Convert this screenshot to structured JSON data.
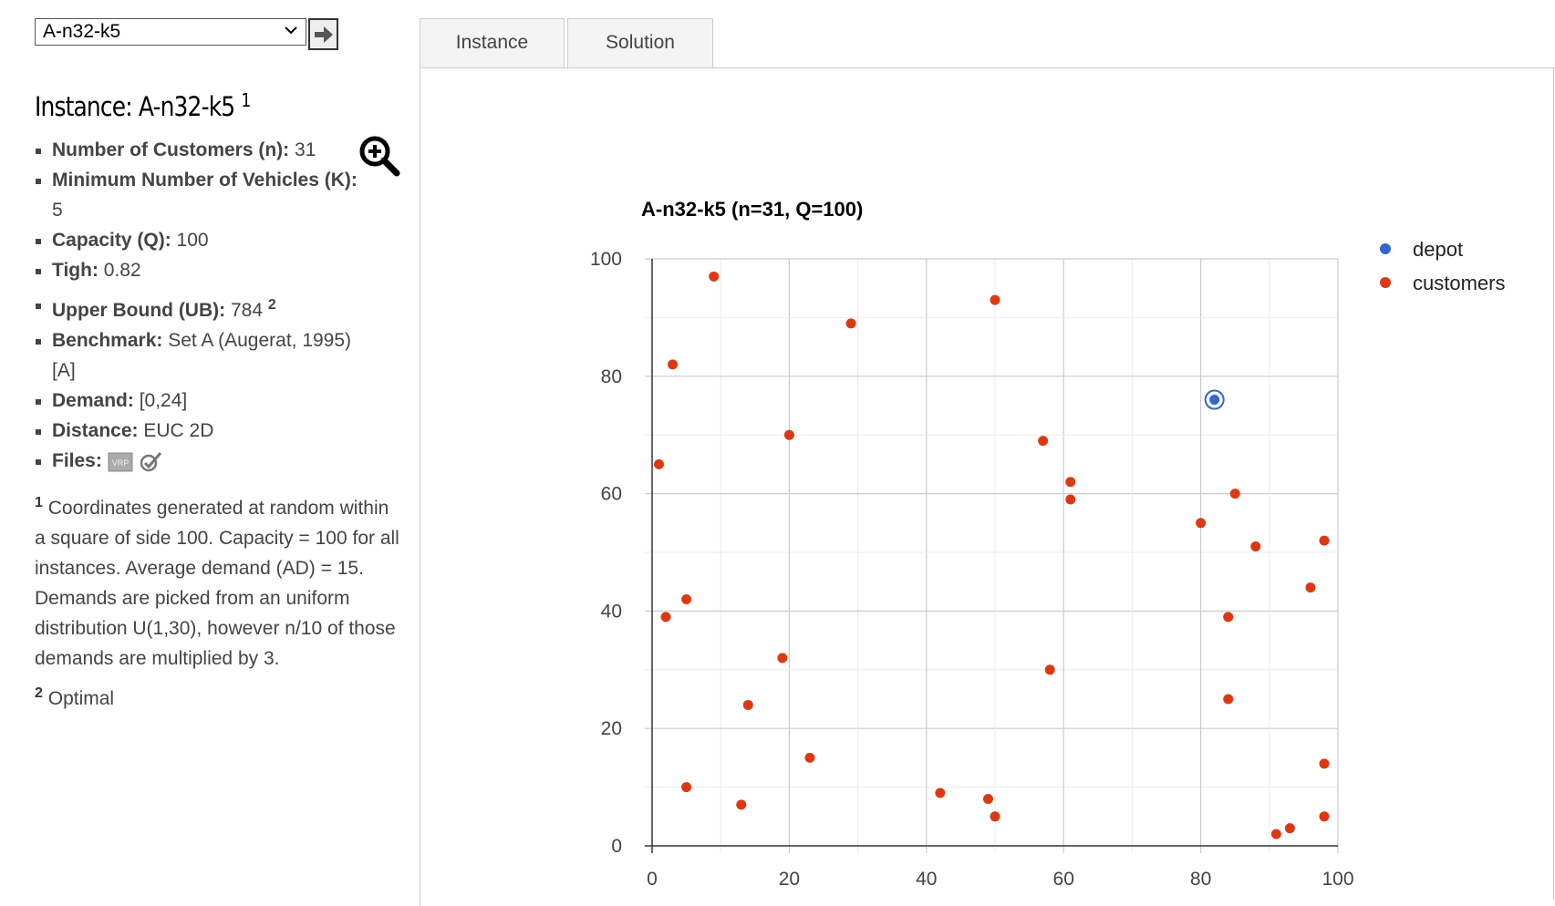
{
  "selector": {
    "value": "A-n32-k5"
  },
  "tabs": [
    {
      "label": "Instance"
    },
    {
      "label": "Solution"
    }
  ],
  "instance": {
    "title_prefix": "Instance: ",
    "name": "A-n32-k5",
    "title_note": "1",
    "properties": [
      {
        "label": "Number of Customers (n):",
        "value": " 31"
      },
      {
        "label": "Minimum Number of Vehicles (K):",
        "value": " 5"
      },
      {
        "label": "Capacity (Q):",
        "value": " 100"
      },
      {
        "label": "Tigh:",
        "value": " 0.82"
      },
      {
        "label": "Upper Bound (UB):",
        "value": " 784 ",
        "note": "2"
      },
      {
        "label": "Benchmark:",
        "value": " Set A (Augerat, 1995) [A]"
      },
      {
        "label": "Demand:",
        "value": " [0,24]"
      },
      {
        "label": "Distance:",
        "value": " EUC 2D"
      },
      {
        "label": "Files:",
        "value": ""
      }
    ],
    "files_icons": [
      "vrp-file-icon",
      "solution-file-icon"
    ],
    "notes": [
      {
        "num": "1",
        "text": " Coordinates generated at random within a square of side 100. Capacity = 100 for all instances. Average demand (AD) = 15. Demands are picked from an uniform distribution U(1,30), however n/10 of those demands are multiplied by 3."
      },
      {
        "num": "2",
        "text": " Optimal"
      }
    ]
  },
  "colors": {
    "depot": "#3366cc",
    "customers": "#dc3912",
    "grid": "#dddddd",
    "axis": "#333333"
  },
  "chart_data": {
    "type": "scatter",
    "title": "A-n32-k5 (n=31, Q=100)",
    "xlabel": "",
    "ylabel": "",
    "xlim": [
      0,
      100
    ],
    "ylim": [
      0,
      100
    ],
    "x_ticks": [
      "0",
      "20",
      "40",
      "60",
      "80",
      "100"
    ],
    "y_ticks": [
      "0",
      "20",
      "40",
      "60",
      "80",
      "100"
    ],
    "grid": true,
    "legend_position": "right",
    "series": [
      {
        "name": "depot",
        "points": [
          [
            82,
            76
          ]
        ]
      },
      {
        "name": "customers",
        "points": [
          [
            1,
            65
          ],
          [
            2,
            39
          ],
          [
            3,
            82
          ],
          [
            5,
            42
          ],
          [
            5,
            10
          ],
          [
            9,
            97
          ],
          [
            13,
            7
          ],
          [
            14,
            24
          ],
          [
            19,
            32
          ],
          [
            20,
            70
          ],
          [
            23,
            15
          ],
          [
            29,
            89
          ],
          [
            42,
            9
          ],
          [
            49,
            8
          ],
          [
            50,
            93
          ],
          [
            50,
            5
          ],
          [
            57,
            69
          ],
          [
            58,
            30
          ],
          [
            61,
            62
          ],
          [
            61,
            59
          ],
          [
            80,
            55
          ],
          [
            84,
            39
          ],
          [
            84,
            25
          ],
          [
            85,
            60
          ],
          [
            88,
            51
          ],
          [
            91,
            2
          ],
          [
            93,
            3
          ],
          [
            96,
            44
          ],
          [
            98,
            52
          ],
          [
            98,
            14
          ],
          [
            98,
            5
          ]
        ]
      }
    ]
  }
}
